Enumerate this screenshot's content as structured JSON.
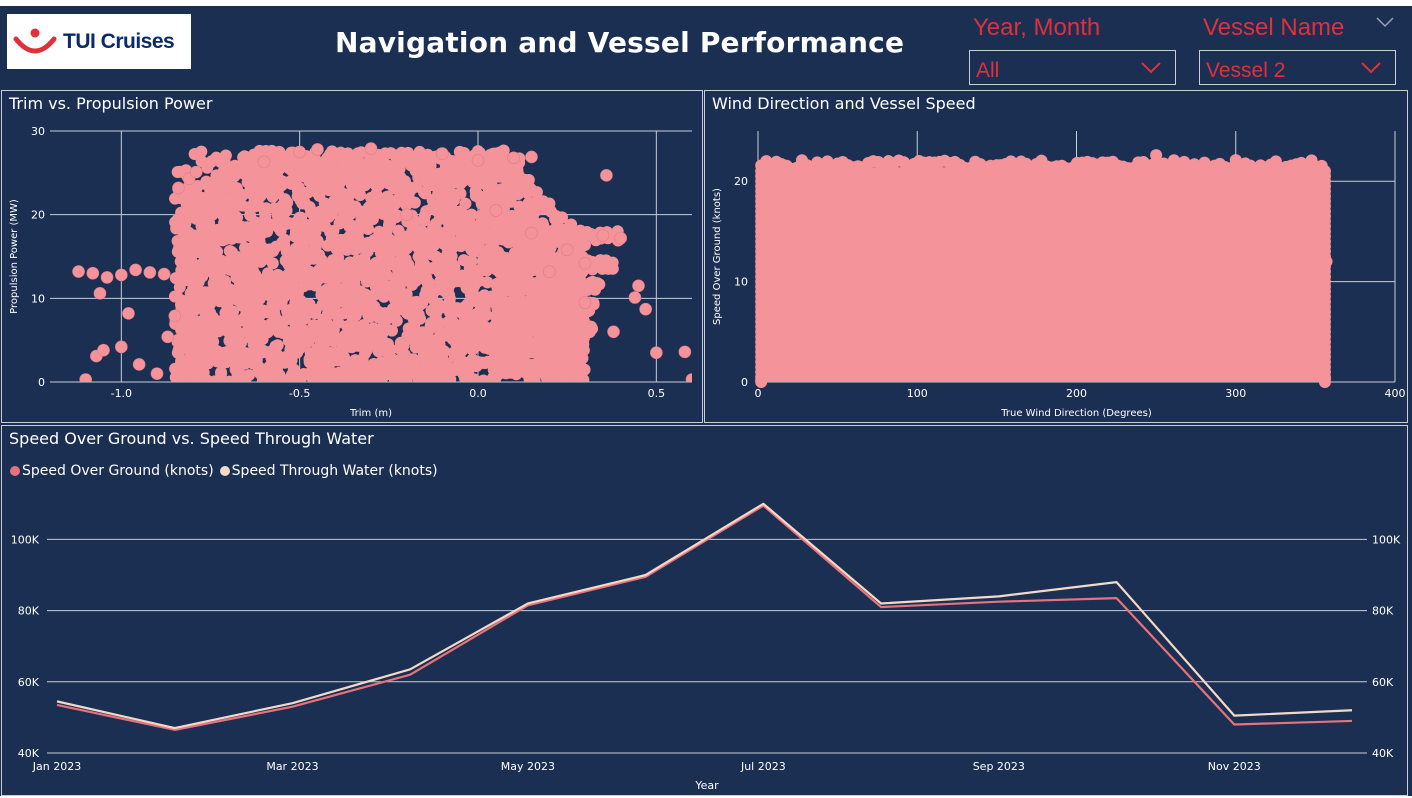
{
  "header": {
    "logo_text": "TUI Cruises",
    "title": "Navigation and Vessel Performance"
  },
  "slicers": [
    {
      "label": "Year, Month",
      "value": "All"
    },
    {
      "label": "Vessel Name",
      "value": "Vessel 2"
    }
  ],
  "colors": {
    "background": "#1a2f52",
    "scatter": "#f4939a",
    "sog_line": "#e8727c",
    "stw_line": "#f3d9c6",
    "slicer_text": "#e0303b"
  },
  "chart_data": [
    {
      "type": "scatter",
      "title": "Trim vs. Propulsion Power",
      "xlabel": "Trim (m)",
      "ylabel": "Propulsion Power (MW)",
      "xlim": [
        -1.2,
        0.6
      ],
      "ylim": [
        0,
        30
      ],
      "x_ticks": [
        "-1.0",
        "-0.5",
        "0.0",
        "0.5"
      ],
      "y_ticks": [
        "0",
        "10",
        "20",
        "30"
      ],
      "grid": true,
      "points": [
        [
          -1.12,
          13.2
        ],
        [
          -1.08,
          13.0
        ],
        [
          -1.04,
          12.5
        ],
        [
          -1.0,
          12.8
        ],
        [
          -0.96,
          13.4
        ],
        [
          -0.92,
          13.1
        ],
        [
          -0.88,
          12.9
        ],
        [
          -1.1,
          0.3
        ],
        [
          -1.07,
          3.1
        ],
        [
          -1.05,
          3.8
        ],
        [
          -1.0,
          4.2
        ],
        [
          -0.95,
          2.1
        ],
        [
          -0.9,
          1.0
        ],
        [
          -0.98,
          8.2
        ],
        [
          -1.06,
          10.6
        ],
        [
          -0.87,
          5.4
        ],
        [
          -0.85,
          7.9
        ],
        [
          -0.84,
          23.2
        ],
        [
          -0.81,
          24.3
        ],
        [
          -0.79,
          25.1
        ],
        [
          -0.6,
          26.3
        ],
        [
          -0.5,
          27.5
        ],
        [
          -0.45,
          27.8
        ],
        [
          -0.3,
          27.9
        ],
        [
          -0.1,
          27.3
        ],
        [
          0.0,
          26.5
        ],
        [
          0.1,
          26.8
        ],
        [
          0.15,
          26.9
        ],
        [
          0.36,
          24.7
        ],
        [
          0.35,
          17.5
        ],
        [
          0.4,
          17.2
        ],
        [
          0.3,
          14.2
        ],
        [
          0.45,
          11.5
        ],
        [
          0.47,
          8.7
        ],
        [
          0.5,
          3.5
        ],
        [
          0.58,
          3.6
        ],
        [
          0.6,
          0.3
        ],
        [
          0.44,
          10.1
        ],
        [
          0.38,
          6.0
        ],
        [
          0.2,
          13.2
        ],
        [
          -0.2,
          20.0
        ],
        [
          0.05,
          20.5
        ],
        [
          0.15,
          17.8
        ],
        [
          0.25,
          15.8
        ],
        [
          0.3,
          9.5
        ]
      ]
    },
    {
      "type": "scatter",
      "title": "Wind Direction and Vessel Speed",
      "xlabel": "True Wind Direction (Degrees)",
      "ylabel": "Speed Over Ground (knots)",
      "xlim": [
        0,
        400
      ],
      "ylim": [
        0,
        25
      ],
      "x_ticks": [
        "0",
        "100",
        "200",
        "300",
        "400"
      ],
      "y_ticks": [
        "0",
        "10",
        "20"
      ],
      "grid": true,
      "points": [
        [
          5,
          21.4
        ],
        [
          50,
          21.7
        ],
        [
          100,
          21.8
        ],
        [
          150,
          21.6
        ],
        [
          200,
          21.7
        ],
        [
          250,
          22.6
        ],
        [
          300,
          22.1
        ],
        [
          350,
          21.5
        ],
        [
          2,
          0.2
        ],
        [
          356,
          0.3
        ],
        [
          3,
          12.0
        ],
        [
          357,
          12.0
        ],
        [
          180,
          10.0
        ],
        [
          90,
          5.0
        ],
        [
          270,
          15.0
        ]
      ]
    },
    {
      "type": "line",
      "title": "Speed Over Ground vs. Speed Through Water",
      "xlabel": "Year",
      "ylabel": "",
      "ylim": [
        40000,
        115000
      ],
      "y_ticks": [
        "40K",
        "60K",
        "80K",
        "100K"
      ],
      "x_ticks": [
        "Jan 2023",
        "Mar 2023",
        "May 2023",
        "Jul 2023",
        "Sep 2023",
        "Nov 2023"
      ],
      "categories": [
        "Jan 2023",
        "Feb 2023",
        "Mar 2023",
        "Apr 2023",
        "May 2023",
        "Jun 2023",
        "Jul 2023",
        "Aug 2023",
        "Sep 2023",
        "Oct 2023",
        "Nov 2023",
        "Dec 2023"
      ],
      "legend_position": "top-left",
      "grid": true,
      "series": [
        {
          "name": "Speed Over Ground (knots)",
          "values": [
            53500,
            46500,
            53000,
            62000,
            81500,
            89500,
            109500,
            81000,
            82500,
            83500,
            48000,
            49000
          ]
        },
        {
          "name": "Speed Through Water (knots)",
          "values": [
            54500,
            47000,
            54000,
            63500,
            82000,
            90000,
            110000,
            82000,
            84000,
            88000,
            50500,
            52000
          ]
        }
      ]
    }
  ]
}
